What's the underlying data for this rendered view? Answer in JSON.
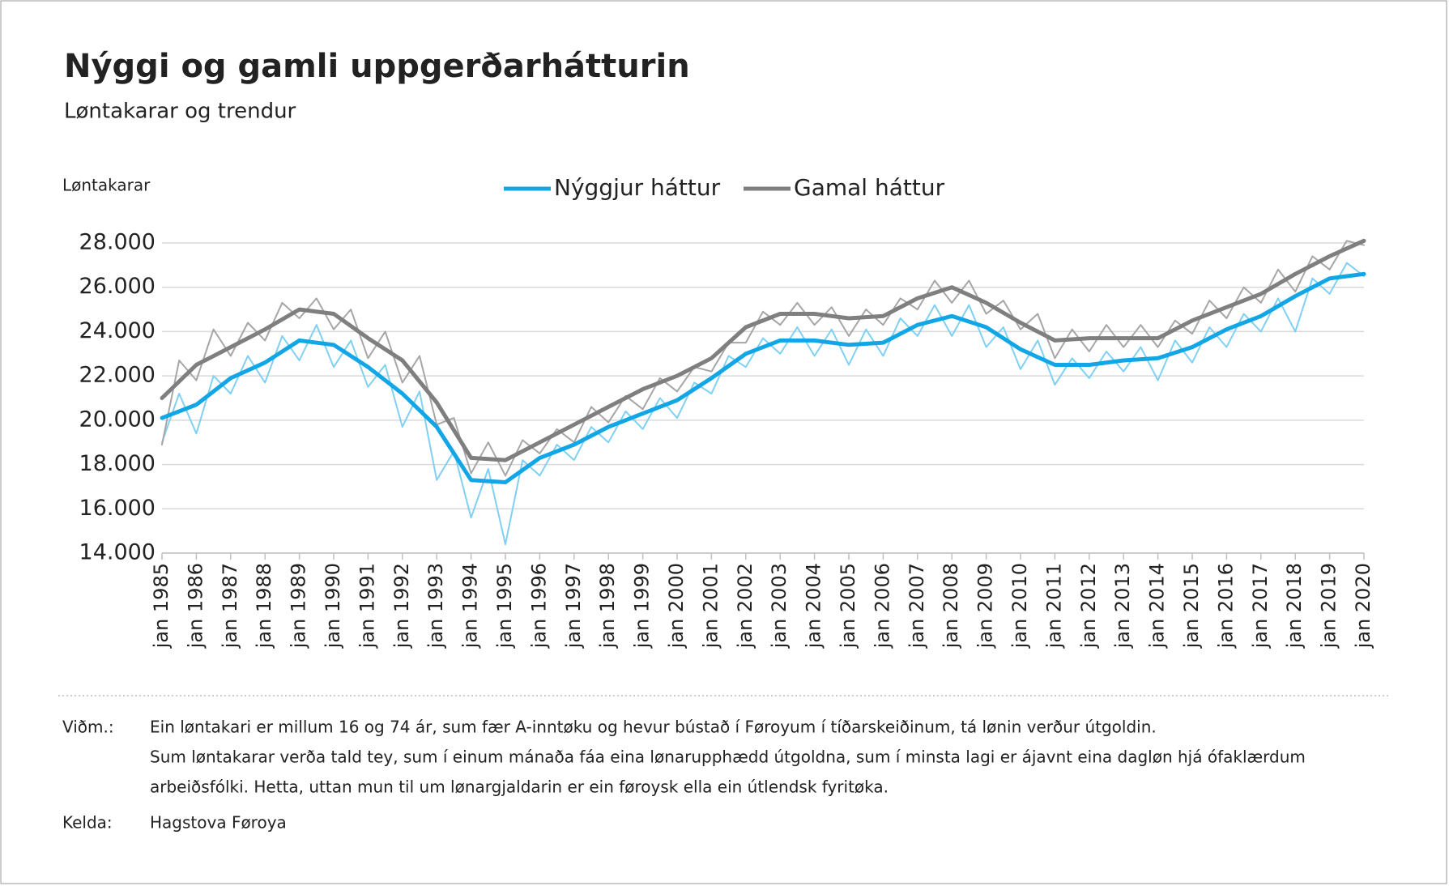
{
  "chart_data": {
    "type": "line",
    "title": "Nýggi og gamli uppgerðarhátturin",
    "subtitle": "Løntakarar og trendur",
    "y_label": "Løntakarar",
    "ylim": [
      14000,
      28000
    ],
    "yticks": [
      {
        "value": 14000,
        "label": "14.000"
      },
      {
        "value": 16000,
        "label": "16.000"
      },
      {
        "value": 18000,
        "label": "18.000"
      },
      {
        "value": 20000,
        "label": "20.000"
      },
      {
        "value": 22000,
        "label": "22.000"
      },
      {
        "value": 24000,
        "label": "24.000"
      },
      {
        "value": 26000,
        "label": "26.000"
      },
      {
        "value": 28000,
        "label": "28.000"
      }
    ],
    "xlim": [
      1985,
      2020
    ],
    "xticks": [
      {
        "value": 1985,
        "label": "jan 1985"
      },
      {
        "value": 1986,
        "label": "jan 1986"
      },
      {
        "value": 1987,
        "label": "jan 1987"
      },
      {
        "value": 1988,
        "label": "jan 1988"
      },
      {
        "value": 1989,
        "label": "jan 1989"
      },
      {
        "value": 1990,
        "label": "jan 1990"
      },
      {
        "value": 1991,
        "label": "jan 1991"
      },
      {
        "value": 1992,
        "label": "jan 1992"
      },
      {
        "value": 1993,
        "label": "jan 1993"
      },
      {
        "value": 1994,
        "label": "jan 1994"
      },
      {
        "value": 1995,
        "label": "jan 1995"
      },
      {
        "value": 1996,
        "label": "jan 1996"
      },
      {
        "value": 1997,
        "label": "jan 1997"
      },
      {
        "value": 1998,
        "label": "jan 1998"
      },
      {
        "value": 1999,
        "label": "jan 1999"
      },
      {
        "value": 2000,
        "label": "jan 2000"
      },
      {
        "value": 2001,
        "label": "jan 2001"
      },
      {
        "value": 2002,
        "label": "jan 2002"
      },
      {
        "value": 2003,
        "label": "jan 2003"
      },
      {
        "value": 2004,
        "label": "jan 2004"
      },
      {
        "value": 2005,
        "label": "jan 2005"
      },
      {
        "value": 2006,
        "label": "jan 2006"
      },
      {
        "value": 2007,
        "label": "jan 2007"
      },
      {
        "value": 2008,
        "label": "jan 2008"
      },
      {
        "value": 2009,
        "label": "jan 2009"
      },
      {
        "value": 2010,
        "label": "jan 2010"
      },
      {
        "value": 2011,
        "label": "jan 2011"
      },
      {
        "value": 2012,
        "label": "jan 2012"
      },
      {
        "value": 2013,
        "label": "jan 2013"
      },
      {
        "value": 2014,
        "label": "jan 2014"
      },
      {
        "value": 2015,
        "label": "jan 2015"
      },
      {
        "value": 2016,
        "label": "jan 2016"
      },
      {
        "value": 2017,
        "label": "jan 2017"
      },
      {
        "value": 2018,
        "label": "jan 2018"
      },
      {
        "value": 2019,
        "label": "jan 2019"
      },
      {
        "value": 2020,
        "label": "jan 2020"
      }
    ],
    "grid": true,
    "legend": "top",
    "series": [
      {
        "color": "#7fd0f2",
        "width": 2,
        "x": [
          1985,
          1985.5,
          1986,
          1986.5,
          1987,
          1987.5,
          1988,
          1988.5,
          1989,
          1989.5,
          1990,
          1990.5,
          1991,
          1991.5,
          1992,
          1992.5,
          1993,
          1993.5,
          1994,
          1994.5,
          1995,
          1995.5,
          1996,
          1996.5,
          1997,
          1997.5,
          1998,
          1998.5,
          1999,
          1999.5,
          2000,
          2000.5,
          2001,
          2001.5,
          2002,
          2002.5,
          2003,
          2003.5,
          2004,
          2004.5,
          2005,
          2005.5,
          2006,
          2006.5,
          2007,
          2007.5,
          2008,
          2008.5,
          2009,
          2009.5,
          2010,
          2010.5,
          2011,
          2011.5,
          2012,
          2012.5,
          2013,
          2013.5,
          2014,
          2014.5,
          2015,
          2015.5,
          2016,
          2016.5,
          2017,
          2017.5,
          2018,
          2018.5,
          2019,
          2019.5,
          2020
        ],
        "values": [
          19000,
          21200,
          19400,
          22000,
          21200,
          22900,
          21700,
          23800,
          22700,
          24300,
          22400,
          23600,
          21500,
          22500,
          19700,
          21300,
          17300,
          18600,
          15600,
          17800,
          14400,
          18200,
          17500,
          18900,
          18200,
          19700,
          19000,
          20400,
          19600,
          21000,
          20100,
          21700,
          21200,
          22900,
          22400,
          23700,
          23000,
          24200,
          22900,
          24100,
          22500,
          24100,
          22900,
          24600,
          23800,
          25200,
          23800,
          25200,
          23300,
          24200,
          22300,
          23600,
          21600,
          22800,
          21900,
          23100,
          22200,
          23300,
          21800,
          23600,
          22600,
          24200,
          23300,
          24800,
          24000,
          25500,
          24000,
          26400,
          25700,
          27100,
          26500
        ]
      },
      {
        "color": "#a6a6a6",
        "width": 2,
        "x": [
          1985,
          1985.5,
          1986,
          1986.5,
          1987,
          1987.5,
          1988,
          1988.5,
          1989,
          1989.5,
          1990,
          1990.5,
          1991,
          1991.5,
          1992,
          1992.5,
          1993,
          1993.5,
          1994,
          1994.5,
          1995,
          1995.5,
          1996,
          1996.5,
          1997,
          1997.5,
          1998,
          1998.5,
          1999,
          1999.5,
          2000,
          2000.5,
          2001,
          2001.5,
          2002,
          2002.5,
          2003,
          2003.5,
          2004,
          2004.5,
          2005,
          2005.5,
          2006,
          2006.5,
          2007,
          2007.5,
          2008,
          2008.5,
          2009,
          2009.5,
          2010,
          2010.5,
          2011,
          2011.5,
          2012,
          2012.5,
          2013,
          2013.5,
          2014,
          2014.5,
          2015,
          2015.5,
          2016,
          2016.5,
          2017,
          2017.5,
          2018,
          2018.5,
          2019,
          2019.5,
          2020
        ],
        "values": [
          18900,
          22700,
          21800,
          24100,
          22900,
          24400,
          23600,
          25300,
          24600,
          25500,
          24100,
          25000,
          22800,
          24000,
          21700,
          22900,
          19800,
          20100,
          17600,
          19000,
          17500,
          19100,
          18500,
          19600,
          19000,
          20600,
          19900,
          21100,
          20500,
          21900,
          21300,
          22400,
          22200,
          23500,
          23500,
          24900,
          24300,
          25300,
          24300,
          25100,
          23800,
          25000,
          24300,
          25500,
          25000,
          26300,
          25300,
          26300,
          24800,
          25400,
          24100,
          24800,
          22800,
          24100,
          23100,
          24300,
          23300,
          24300,
          23300,
          24500,
          23900,
          25400,
          24600,
          26000,
          25300,
          26800,
          25800,
          27400,
          26800,
          28100,
          27900
        ]
      },
      {
        "name": "Nýggjur háttur",
        "color": "#12a6e6",
        "width": 5,
        "x": [
          1985,
          1986,
          1987,
          1988,
          1989,
          1990,
          1991,
          1992,
          1993,
          1994,
          1995,
          1996,
          1997,
          1998,
          1999,
          2000,
          2001,
          2002,
          2003,
          2004,
          2005,
          2006,
          2007,
          2008,
          2009,
          2010,
          2011,
          2012,
          2013,
          2014,
          2015,
          2016,
          2017,
          2018,
          2019,
          2020
        ],
        "values": [
          20100,
          20700,
          21900,
          22600,
          23600,
          23400,
          22400,
          21200,
          19700,
          17300,
          17200,
          18300,
          18900,
          19700,
          20300,
          20900,
          21900,
          23000,
          23600,
          23600,
          23400,
          23500,
          24300,
          24700,
          24200,
          23200,
          22500,
          22500,
          22700,
          22800,
          23300,
          24100,
          24700,
          25600,
          26400,
          26600
        ]
      },
      {
        "name": "Gamal háttur",
        "color": "#7f7f7f",
        "width": 5,
        "x": [
          1985,
          1986,
          1987,
          1988,
          1989,
          1990,
          1991,
          1992,
          1993,
          1994,
          1995,
          1996,
          1997,
          1998,
          1999,
          2000,
          2001,
          2002,
          2003,
          2004,
          2005,
          2006,
          2007,
          2008,
          2009,
          2010,
          2011,
          2012,
          2013,
          2014,
          2015,
          2016,
          2017,
          2018,
          2019,
          2020
        ],
        "values": [
          21000,
          22500,
          23300,
          24100,
          25000,
          24800,
          23700,
          22700,
          20800,
          18300,
          18200,
          19000,
          19800,
          20600,
          21400,
          22000,
          22800,
          24200,
          24800,
          24800,
          24600,
          24700,
          25500,
          26000,
          25300,
          24400,
          23600,
          23700,
          23700,
          23700,
          24500,
          25100,
          25700,
          26600,
          27400,
          28100
        ]
      }
    ]
  },
  "notes": {
    "label": "Viðm.:",
    "lines": [
      "Ein løntakari er millum 16 og 74 ár, sum fær A-inntøku og hevur bústað í Føroyum í tíðarskeiðinum, tá lønin verður útgoldin.",
      "Sum løntakarar verða tald tey, sum í einum mánaða fáa eina lønarupphædd útgoldna, sum í minsta lagi er ájavnt eina dagløn hjá ófaklærdum",
      "arbeiðsfólki. Hetta, uttan mun til um lønargjaldarin er ein føroysk ella ein útlendsk fyritøka."
    ]
  },
  "source": {
    "label": "Kelda:",
    "value": "Hagstova Føroya"
  }
}
